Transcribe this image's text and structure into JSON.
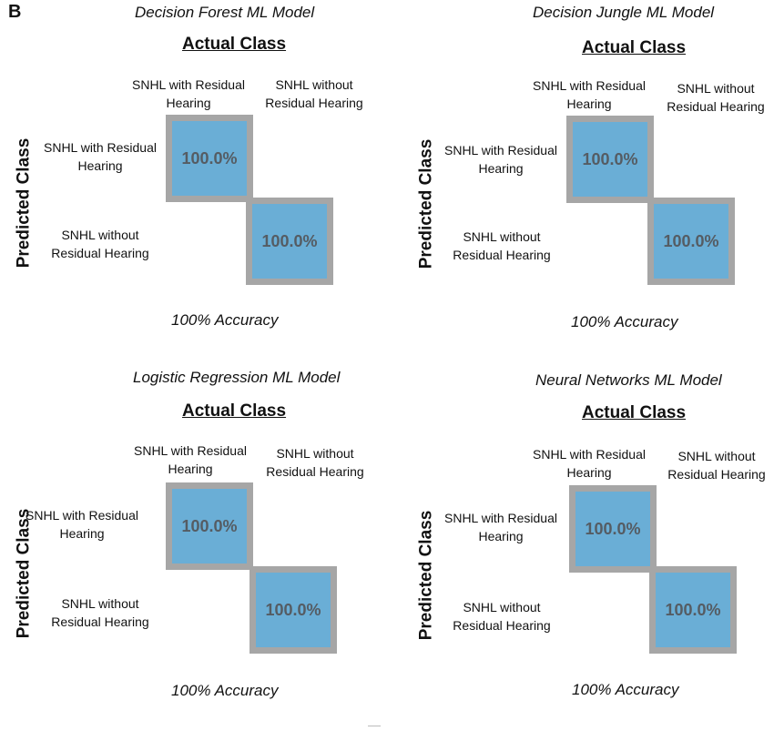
{
  "figure": {
    "panel_label": "B"
  },
  "chart_data": [
    {
      "type": "heatmap",
      "title": "Decision Forest ML Model",
      "xlabel": "Actual Class",
      "ylabel": "Predicted Class",
      "actual_categories": [
        "SNHL with Residual Hearing",
        "SNHL without Residual Hearing"
      ],
      "predicted_categories": [
        "SNHL with Residual Hearing",
        "SNHL without Residual Hearing"
      ],
      "cells": [
        {
          "predicted": 0,
          "actual": 0,
          "label": "100.0%",
          "value": 100.0
        },
        {
          "predicted": 1,
          "actual": 1,
          "label": "100.0%",
          "value": 100.0
        }
      ],
      "accuracy": "100% Accuracy",
      "cell_color": "#6aaed6",
      "border_color": "#a6a6a6"
    },
    {
      "type": "heatmap",
      "title": "Decision Jungle ML Model",
      "xlabel": "Actual Class",
      "ylabel": "Predicted Class",
      "actual_categories": [
        "SNHL with Residual Hearing",
        "SNHL without Residual Hearing"
      ],
      "predicted_categories": [
        "SNHL with Residual Hearing",
        "SNHL without Residual Hearing"
      ],
      "cells": [
        {
          "predicted": 0,
          "actual": 0,
          "label": "100.0%",
          "value": 100.0
        },
        {
          "predicted": 1,
          "actual": 1,
          "label": "100.0%",
          "value": 100.0
        }
      ],
      "accuracy": "100% Accuracy",
      "cell_color": "#6aaed6",
      "border_color": "#a6a6a6"
    },
    {
      "type": "heatmap",
      "title": "Logistic Regression ML Model",
      "xlabel": "Actual Class",
      "ylabel": "Predicted Class",
      "actual_categories": [
        "SNHL with Residual Hearing",
        "SNHL without Residual Hearing"
      ],
      "predicted_categories": [
        "SNHL with Residual Hearing",
        "SNHL without Residual Hearing"
      ],
      "cells": [
        {
          "predicted": 0,
          "actual": 0,
          "label": "100.0%",
          "value": 100.0
        },
        {
          "predicted": 1,
          "actual": 1,
          "label": "100.0%",
          "value": 100.0
        }
      ],
      "accuracy": "100% Accuracy",
      "cell_color": "#6aaed6",
      "border_color": "#a6a6a6"
    },
    {
      "type": "heatmap",
      "title": "Neural Networks ML Model",
      "xlabel": "Actual Class",
      "ylabel": "Predicted Class",
      "actual_categories": [
        "SNHL with Residual Hearing",
        "SNHL without Residual Hearing"
      ],
      "predicted_categories": [
        "SNHL with Residual Hearing",
        "SNHL without Residual Hearing"
      ],
      "cells": [
        {
          "predicted": 0,
          "actual": 0,
          "label": "100.0%",
          "value": 100.0
        },
        {
          "predicted": 1,
          "actual": 1,
          "label": "100.0%",
          "value": 100.0
        }
      ],
      "accuracy": "100% Accuracy",
      "cell_color": "#6aaed6",
      "border_color": "#a6a6a6"
    }
  ]
}
